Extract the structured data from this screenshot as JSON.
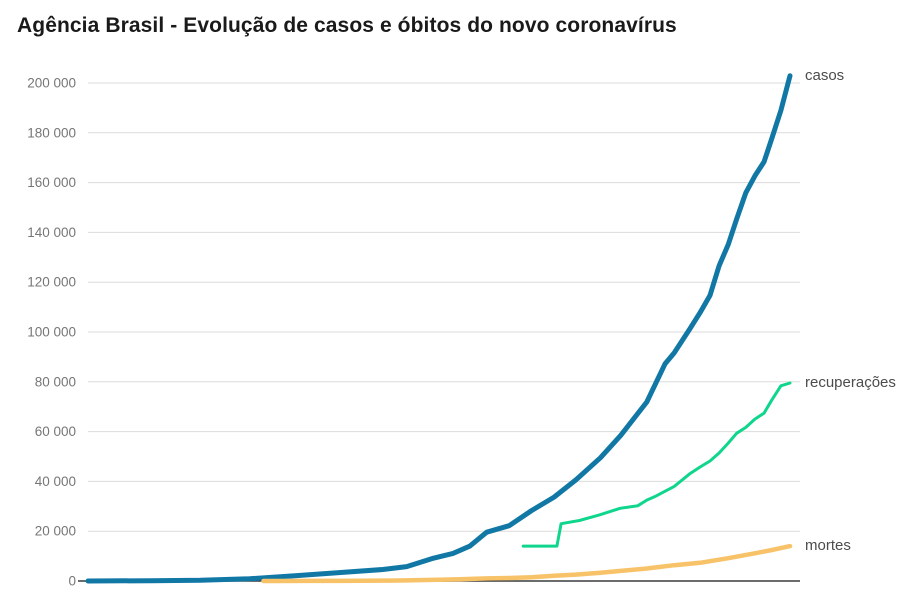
{
  "chart_data": {
    "type": "line",
    "title": "Agência Brasil - Evolução de casos e óbitos do novo coronavírus",
    "xlabel": "",
    "ylabel": "",
    "x_tick_labels_visible": false,
    "ylim": [
      0,
      200000
    ],
    "yticks": [
      0,
      20000,
      40000,
      60000,
      80000,
      100000,
      120000,
      140000,
      160000,
      180000,
      200000
    ],
    "ytick_labels": [
      "0",
      "20 000",
      "40 000",
      "60 000",
      "80 000",
      "100 000",
      "120 000",
      "140 000",
      "160 000",
      "180 000",
      "200 000"
    ],
    "grid": "horizontal",
    "legend_position": "right-end-labels",
    "colors": {
      "grid_line": "#dbdbdb",
      "axis_baseline": "#3c3c3c",
      "tick_label": "#767676",
      "series_label": "#4c4c4c"
    },
    "series": [
      {
        "name": "casos",
        "color": "#1178a5",
        "stroke_width": 5,
        "points": [
          [
            0.0,
            0
          ],
          [
            0.09,
            120
          ],
          [
            0.16,
            300
          ],
          [
            0.23,
            900
          ],
          [
            0.3,
            2200
          ],
          [
            0.36,
            3400
          ],
          [
            0.42,
            4600
          ],
          [
            0.454,
            5800
          ],
          [
            0.49,
            9000
          ],
          [
            0.52,
            11100
          ],
          [
            0.544,
            14000
          ],
          [
            0.568,
            19600
          ],
          [
            0.6,
            22200
          ],
          [
            0.632,
            28300
          ],
          [
            0.664,
            33700
          ],
          [
            0.695,
            40600
          ],
          [
            0.73,
            49500
          ],
          [
            0.759,
            58500
          ],
          [
            0.796,
            71900
          ],
          [
            0.822,
            87200
          ],
          [
            0.835,
            91600
          ],
          [
            0.857,
            101100
          ],
          [
            0.872,
            107800
          ],
          [
            0.886,
            114700
          ],
          [
            0.899,
            126600
          ],
          [
            0.912,
            135100
          ],
          [
            0.924,
            145300
          ],
          [
            0.937,
            155900
          ],
          [
            0.95,
            162700
          ],
          [
            0.963,
            168300
          ],
          [
            0.974,
            177600
          ],
          [
            0.987,
            189000
          ],
          [
            1.0,
            202900
          ]
        ]
      },
      {
        "name": "recuperações",
        "color": "#0fd68c",
        "stroke_width": 3,
        "points": [
          [
            0.62,
            14000
          ],
          [
            0.668,
            14000
          ],
          [
            0.674,
            23000
          ],
          [
            0.7,
            24300
          ],
          [
            0.729,
            26600
          ],
          [
            0.758,
            29200
          ],
          [
            0.783,
            30200
          ],
          [
            0.796,
            32500
          ],
          [
            0.809,
            34100
          ],
          [
            0.835,
            38000
          ],
          [
            0.857,
            43000
          ],
          [
            0.872,
            45800
          ],
          [
            0.886,
            48200
          ],
          [
            0.899,
            51400
          ],
          [
            0.912,
            55400
          ],
          [
            0.924,
            59300
          ],
          [
            0.937,
            61700
          ],
          [
            0.95,
            65000
          ],
          [
            0.963,
            67400
          ],
          [
            0.974,
            72600
          ],
          [
            0.987,
            78400
          ],
          [
            1.0,
            79500
          ]
        ]
      },
      {
        "name": "mortes",
        "color": "#f8c269",
        "stroke_width": 4.5,
        "points": [
          [
            0.25,
            0
          ],
          [
            0.266,
            10
          ],
          [
            0.316,
            30
          ],
          [
            0.353,
            50
          ],
          [
            0.392,
            90
          ],
          [
            0.43,
            160
          ],
          [
            0.454,
            240
          ],
          [
            0.49,
            430
          ],
          [
            0.53,
            670
          ],
          [
            0.568,
            1060
          ],
          [
            0.6,
            1220
          ],
          [
            0.632,
            1530
          ],
          [
            0.664,
            2140
          ],
          [
            0.695,
            2580
          ],
          [
            0.73,
            3310
          ],
          [
            0.759,
            4050
          ],
          [
            0.796,
            5020
          ],
          [
            0.835,
            6330
          ],
          [
            0.872,
            7320
          ],
          [
            0.912,
            9150
          ],
          [
            0.95,
            11120
          ],
          [
            0.974,
            12400
          ],
          [
            1.0,
            14000
          ]
        ]
      }
    ]
  }
}
